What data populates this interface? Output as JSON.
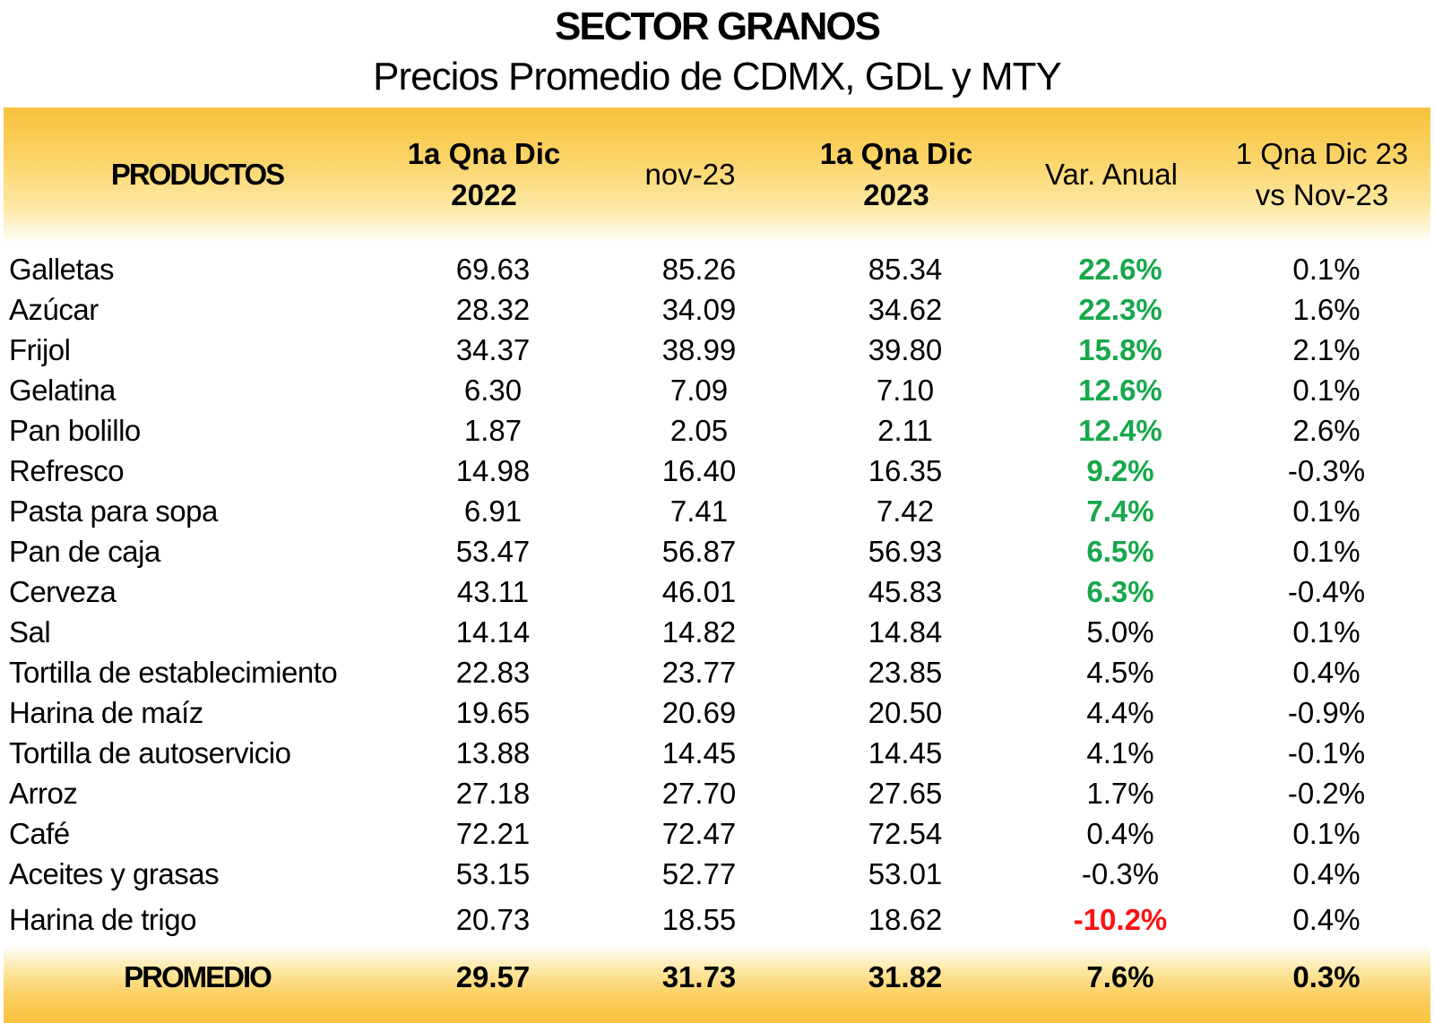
{
  "title": "SECTOR GRANOS",
  "subtitle": "Precios Promedio de CDMX, GDL y MTY",
  "headers": {
    "productos": "PRODUCTOS",
    "col1_line1": "1a Qna Dic",
    "col1_line2": "2022",
    "col2": "nov-23",
    "col3_line1": "1a Qna Dic",
    "col3_line2": "2023",
    "col4": "Var. Anual",
    "col5_line1": "1 Qna Dic 23",
    "col5_line2": "vs Nov-23"
  },
  "rows": [
    {
      "producto": "Galletas",
      "dic2022": "69.63",
      "nov23": "85.26",
      "dic2023": "85.34",
      "var_anual": "22.6%",
      "var_mensual": "0.1%",
      "highlight": "green"
    },
    {
      "producto": "Azúcar",
      "dic2022": "28.32",
      "nov23": "34.09",
      "dic2023": "34.62",
      "var_anual": "22.3%",
      "var_mensual": "1.6%",
      "highlight": "green"
    },
    {
      "producto": "Frijol",
      "dic2022": "34.37",
      "nov23": "38.99",
      "dic2023": "39.80",
      "var_anual": "15.8%",
      "var_mensual": "2.1%",
      "highlight": "green"
    },
    {
      "producto": "Gelatina",
      "dic2022": "6.30",
      "nov23": "7.09",
      "dic2023": "7.10",
      "var_anual": "12.6%",
      "var_mensual": "0.1%",
      "highlight": "green"
    },
    {
      "producto": "Pan bolillo",
      "dic2022": "1.87",
      "nov23": "2.05",
      "dic2023": "2.11",
      "var_anual": "12.4%",
      "var_mensual": "2.6%",
      "highlight": "green"
    },
    {
      "producto": "Refresco",
      "dic2022": "14.98",
      "nov23": "16.40",
      "dic2023": "16.35",
      "var_anual": "9.2%",
      "var_mensual": "-0.3%",
      "highlight": "green"
    },
    {
      "producto": "Pasta para sopa",
      "dic2022": "6.91",
      "nov23": "7.41",
      "dic2023": "7.42",
      "var_anual": "7.4%",
      "var_mensual": "0.1%",
      "highlight": "green"
    },
    {
      "producto": "Pan de caja",
      "dic2022": "53.47",
      "nov23": "56.87",
      "dic2023": "56.93",
      "var_anual": "6.5%",
      "var_mensual": "0.1%",
      "highlight": "green"
    },
    {
      "producto": "Cerveza",
      "dic2022": "43.11",
      "nov23": "46.01",
      "dic2023": "45.83",
      "var_anual": "6.3%",
      "var_mensual": "-0.4%",
      "highlight": "green"
    },
    {
      "producto": "Sal",
      "dic2022": "14.14",
      "nov23": "14.82",
      "dic2023": "14.84",
      "var_anual": "5.0%",
      "var_mensual": "0.1%",
      "highlight": "none"
    },
    {
      "producto": "Tortilla de establecimiento",
      "dic2022": "22.83",
      "nov23": "23.77",
      "dic2023": "23.85",
      "var_anual": "4.5%",
      "var_mensual": "0.4%",
      "highlight": "none"
    },
    {
      "producto": "Harina de maíz",
      "dic2022": "19.65",
      "nov23": "20.69",
      "dic2023": "20.50",
      "var_anual": "4.4%",
      "var_mensual": "-0.9%",
      "highlight": "none"
    },
    {
      "producto": "Tortilla de autoservicio",
      "dic2022": "13.88",
      "nov23": "14.45",
      "dic2023": "14.45",
      "var_anual": "4.1%",
      "var_mensual": "-0.1%",
      "highlight": "none"
    },
    {
      "producto": "Arroz",
      "dic2022": "27.18",
      "nov23": "27.70",
      "dic2023": "27.65",
      "var_anual": "1.7%",
      "var_mensual": "-0.2%",
      "highlight": "none"
    },
    {
      "producto": "Café",
      "dic2022": "72.21",
      "nov23": "72.47",
      "dic2023": "72.54",
      "var_anual": "0.4%",
      "var_mensual": "0.1%",
      "highlight": "none"
    },
    {
      "producto": "Aceites y grasas",
      "dic2022": "53.15",
      "nov23": "52.77",
      "dic2023": "53.01",
      "var_anual": "-0.3%",
      "var_mensual": "0.4%",
      "highlight": "none"
    },
    {
      "producto": "Harina de trigo",
      "dic2022": "20.73",
      "nov23": "18.55",
      "dic2023": "18.62",
      "var_anual": "-10.2%",
      "var_mensual": "0.4%",
      "highlight": "red"
    }
  ],
  "footer": {
    "label": "PROMEDIO",
    "dic2022": "29.57",
    "nov23": "31.73",
    "dic2023": "31.82",
    "var_anual": "7.6%",
    "var_mensual": "0.3%"
  }
}
